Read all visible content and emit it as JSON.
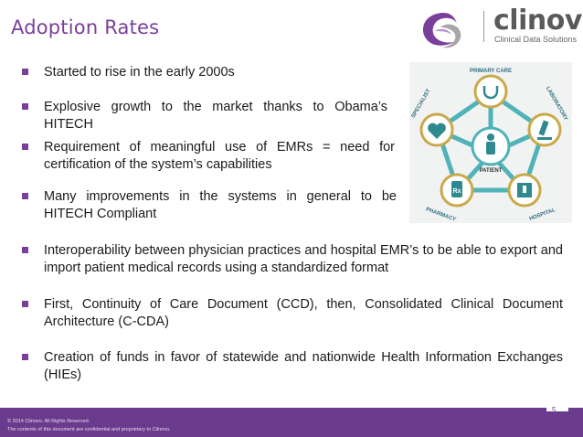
{
  "slide": {
    "title": "Adoption Rates",
    "page_number": "5"
  },
  "logo": {
    "name": "clinovo",
    "tagline": "Clinical Data Solutions"
  },
  "bullets": [
    "Started to rise in the early 2000s",
    "Explosive growth to the market thanks to Obama’s HITECH",
    "Requirement of meaningful use of EMRs = need for certification of the system’s capabilities",
    "Many improvements in the systems in general to be HITECH Compliant",
    "Interoperability  between physician practices and hospital EMR’s to be able to export and import patient medical records using a standardized format",
    "First, Continuity of Care Document (CCD), then, Consolidated Clinical Document Architecture (C-CDA)",
    "Creation of funds in favor of statewide and nationwide Health Information Exchanges (HIEs)"
  ],
  "diagram": {
    "center_label": "PATIENT",
    "nodes": [
      "PRIMARY CARE",
      "LABORATORY",
      "HOSPITAL",
      "PHARMACY",
      "SPECIALIST"
    ]
  },
  "footer": {
    "copyright": "© 2014 Clinovo. All Rights Reserved.",
    "notice": "The contents of this document are confidential and proprietary to Clinovo."
  },
  "colors": {
    "accent": "#7a3f9a",
    "footer": "#6a3a8c",
    "diagram_ring": "#4fb3b8",
    "diagram_circle": "#c9a94a"
  }
}
